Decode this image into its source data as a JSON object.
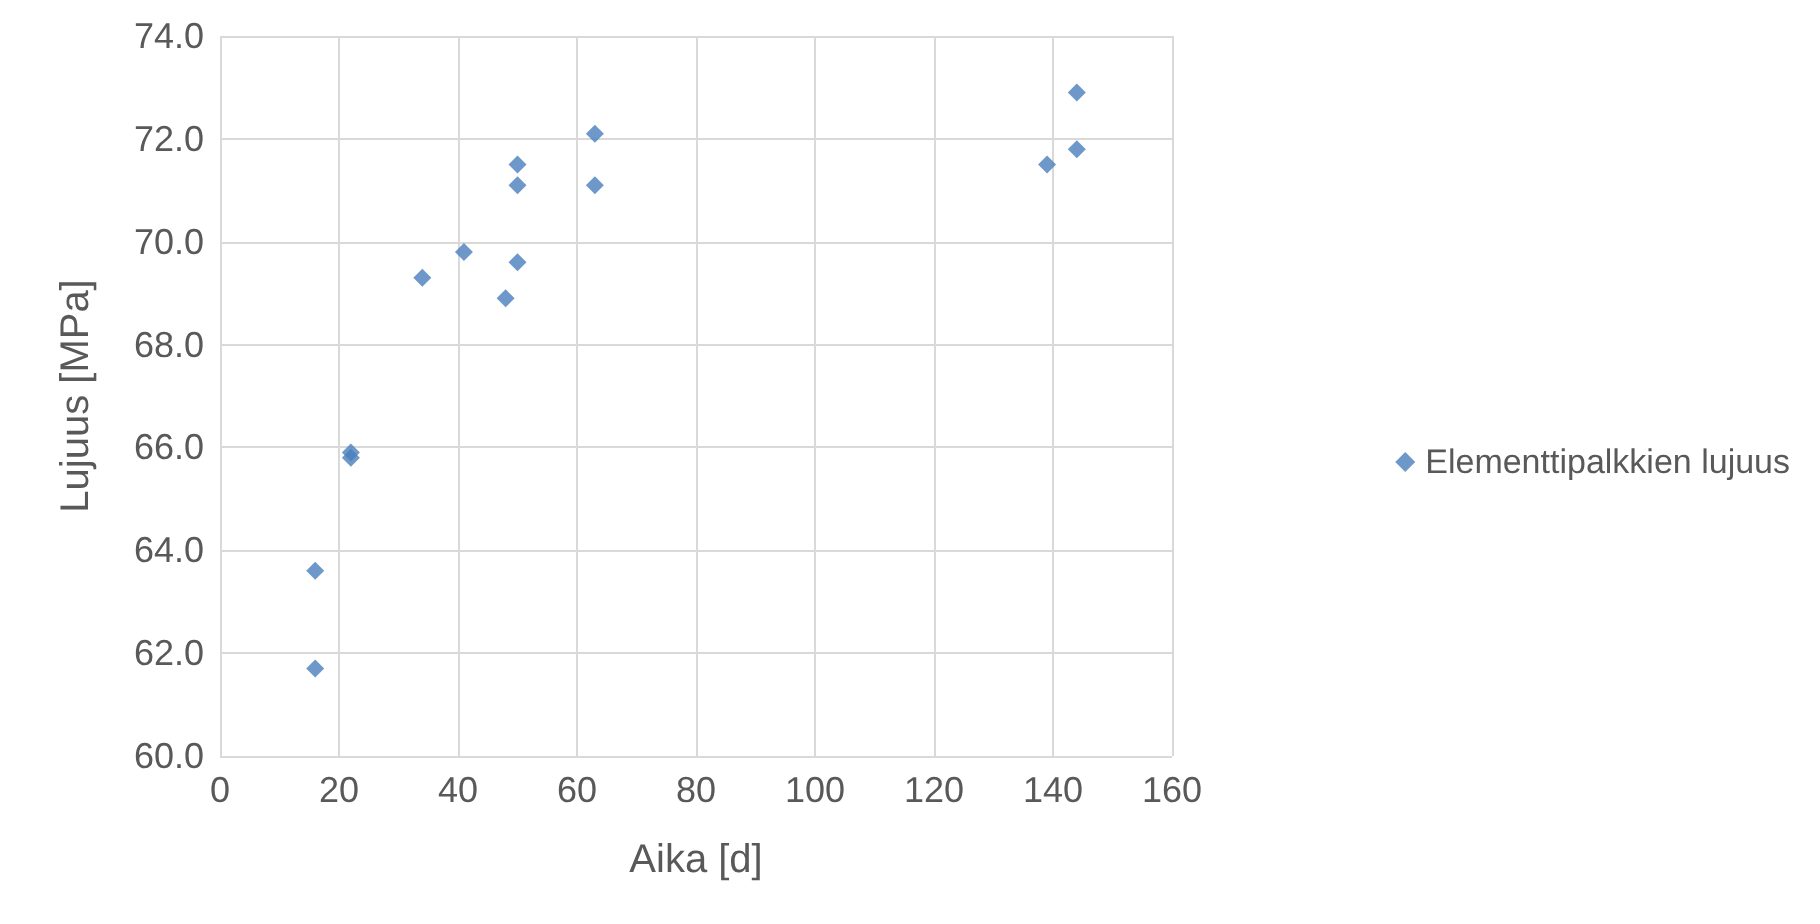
{
  "chart_data": {
    "type": "scatter",
    "xlabel": "Aika [d]",
    "ylabel": "Lujuus [MPa]",
    "xlim": [
      0,
      160
    ],
    "xticks": [
      0,
      20,
      40,
      60,
      80,
      100,
      120,
      140,
      160
    ],
    "ylim": [
      60,
      74
    ],
    "yticks": [
      {
        "value": 60,
        "label": "60.0"
      },
      {
        "value": 62,
        "label": "62.0"
      },
      {
        "value": 64,
        "label": "64.0"
      },
      {
        "value": 66,
        "label": "66.0"
      },
      {
        "value": 68,
        "label": "68.0"
      },
      {
        "value": 70,
        "label": "70.0"
      },
      {
        "value": 72,
        "label": "72.0"
      },
      {
        "value": 74,
        "label": "74.0"
      }
    ],
    "grid": true,
    "legend": "right",
    "marker": "diamond",
    "series": [
      {
        "name": "Elementtipalkkien lujuus",
        "color": "#4a7ebb",
        "x": [
          16,
          16,
          22,
          22,
          34,
          41,
          48,
          50,
          50,
          50,
          63,
          63,
          139,
          144,
          144
        ],
        "values": [
          61.7,
          63.6,
          65.9,
          65.8,
          69.3,
          69.8,
          68.9,
          69.6,
          71.1,
          71.5,
          72.1,
          71.1,
          71.5,
          72.9,
          71.8
        ]
      }
    ]
  }
}
